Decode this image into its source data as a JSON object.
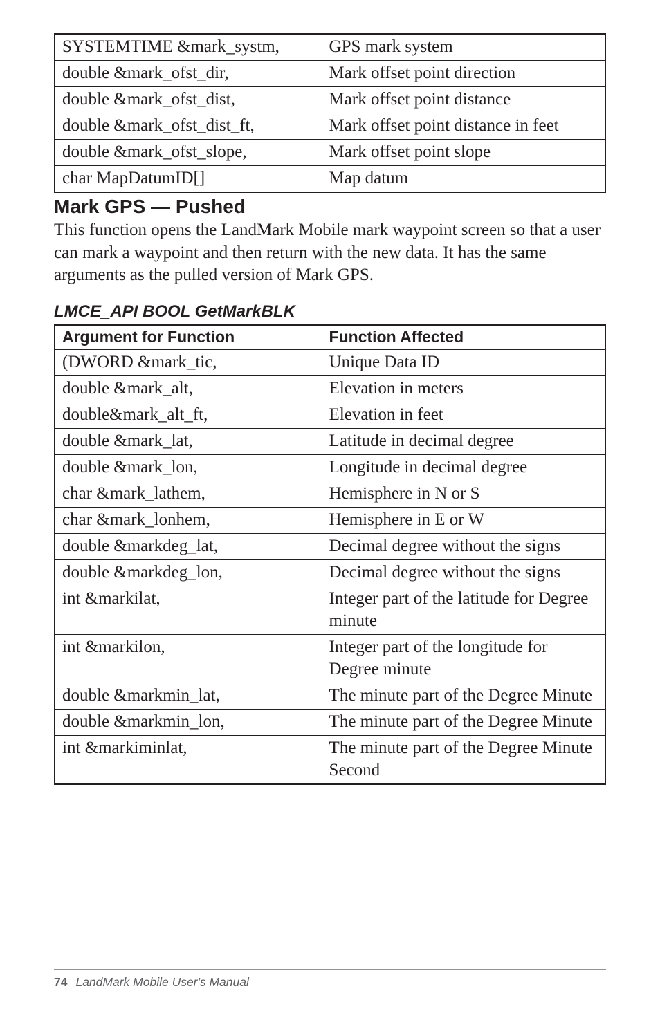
{
  "table1": {
    "rows": [
      [
        "SYSTEMTIME &mark_systm,",
        "GPS mark system"
      ],
      [
        "double &mark_ofst_dir,",
        "Mark offset point direction"
      ],
      [
        "double &mark_ofst_dist,",
        "Mark offset point distance"
      ],
      [
        "double &mark_ofst_dist_ft,",
        "Mark offset point distance in feet"
      ],
      [
        "double &mark_ofst_slope,",
        "Mark offset point slope"
      ],
      [
        "char MapDatumID[]",
        "Map datum"
      ]
    ]
  },
  "section": {
    "heading": "Mark GPS — Pushed",
    "paragraph": "This function opens the LandMark Mobile mark waypoint screen so that a user can mark a waypoint and then return with the new data. It has the same arguments as the pulled version of Mark GPS."
  },
  "table2": {
    "title": "LMCE_API BOOL GetMarkBLK",
    "header": [
      "Argument for Function",
      "Function Affected"
    ],
    "rows": [
      [
        "(DWORD &mark_tic,",
        "Unique Data ID"
      ],
      [
        "double &mark_alt,",
        "Elevation in meters"
      ],
      [
        "double&mark_alt_ft,",
        "Elevation in feet"
      ],
      [
        "double &mark_lat,",
        "Latitude in decimal degree"
      ],
      [
        "double &mark_lon,",
        "Longitude in decimal degree"
      ],
      [
        "char &mark_lathem,",
        "Hemisphere in N or S"
      ],
      [
        "char &mark_lonhem,",
        "Hemisphere in E or W"
      ],
      [
        "double &markdeg_lat,",
        "Decimal degree without the signs"
      ],
      [
        "double &markdeg_lon,",
        "Decimal degree without the signs"
      ],
      [
        "int &markilat,",
        "Integer part of the latitude for Degree minute"
      ],
      [
        "int &markilon,",
        "Integer part of the longitude for Degree minute"
      ],
      [
        "double &markmin_lat,",
        "The minute part of the Degree Minute"
      ],
      [
        "double &markmin_lon,",
        "The minute part of the Degree Minute"
      ],
      [
        "int &markiminlat,",
        "The minute part of the Degree Minute Second"
      ]
    ]
  },
  "footer": {
    "page": "74",
    "title": "LandMark Mobile User's Manual"
  }
}
